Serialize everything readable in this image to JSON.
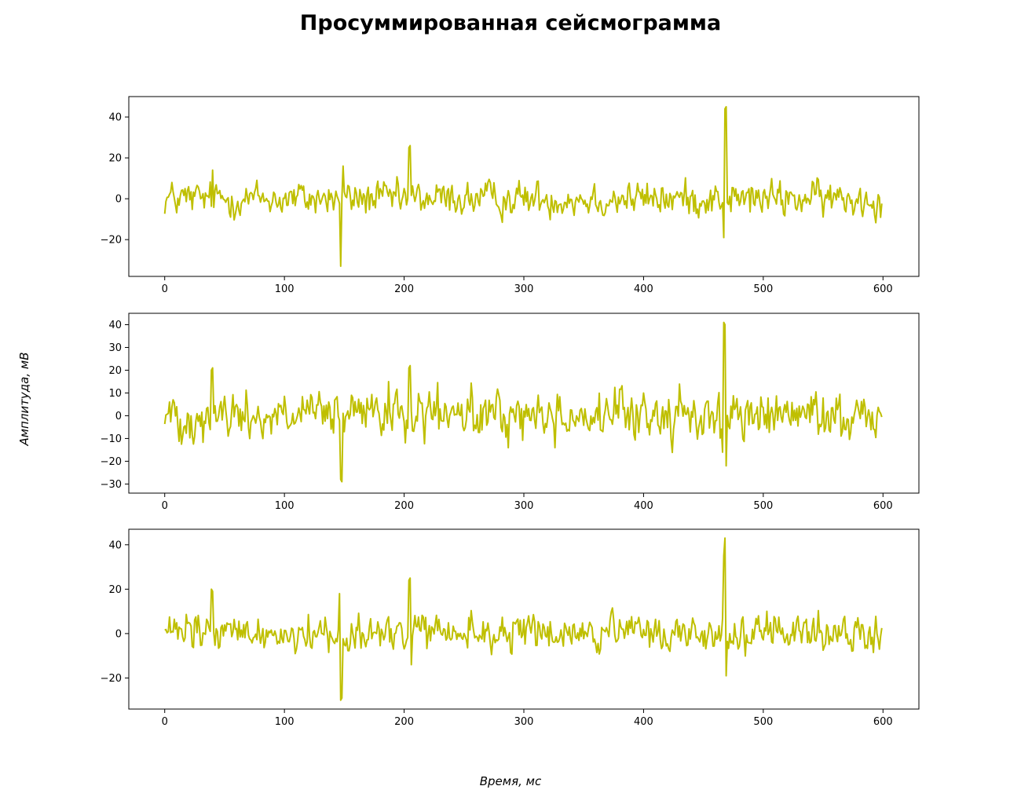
{
  "title": "Просуммированная сейсмограмма",
  "xlabel": "Время, мс",
  "ylabel": "Амплитуда, мВ",
  "chart_data": [
    {
      "type": "line",
      "color": "#bfbf00",
      "xlim": [
        -30,
        630
      ],
      "ylim": [
        -38,
        50
      ],
      "xticks": [
        0,
        100,
        200,
        300,
        400,
        500,
        600
      ],
      "yticks": [
        -20,
        0,
        20,
        40
      ],
      "x_range": [
        0,
        599
      ],
      "baseline_noise": 4,
      "spikes": [
        [
          40,
          14
        ],
        [
          147,
          -33
        ],
        [
          149,
          16
        ],
        [
          204,
          25
        ],
        [
          205,
          26
        ],
        [
          467,
          -19
        ],
        [
          468,
          44
        ],
        [
          469,
          45
        ]
      ]
    },
    {
      "type": "line",
      "color": "#bfbf00",
      "xlim": [
        -30,
        630
      ],
      "ylim": [
        -34,
        45
      ],
      "xticks": [
        0,
        100,
        200,
        300,
        400,
        500,
        600
      ],
      "yticks": [
        -30,
        -20,
        -10,
        0,
        10,
        20,
        30,
        40
      ],
      "x_range": [
        0,
        599
      ],
      "baseline_noise": 5,
      "spikes": [
        [
          39,
          20
        ],
        [
          40,
          21
        ],
        [
          147,
          -28
        ],
        [
          148,
          -29
        ],
        [
          187,
          15
        ],
        [
          204,
          21
        ],
        [
          205,
          22
        ],
        [
          466,
          -16
        ],
        [
          467,
          41
        ],
        [
          468,
          40
        ],
        [
          469,
          -22
        ]
      ]
    },
    {
      "type": "line",
      "color": "#bfbf00",
      "xlim": [
        -30,
        630
      ],
      "ylim": [
        -34,
        47
      ],
      "xticks": [
        0,
        100,
        200,
        300,
        400,
        500,
        600
      ],
      "yticks": [
        -20,
        0,
        20,
        40
      ],
      "x_range": [
        0,
        599
      ],
      "baseline_noise": 4,
      "spikes": [
        [
          39,
          20
        ],
        [
          40,
          19
        ],
        [
          146,
          18
        ],
        [
          147,
          -30
        ],
        [
          148,
          -29
        ],
        [
          204,
          24
        ],
        [
          205,
          25
        ],
        [
          206,
          -14
        ],
        [
          467,
          35
        ],
        [
          468,
          43
        ],
        [
          469,
          -19
        ]
      ]
    }
  ]
}
